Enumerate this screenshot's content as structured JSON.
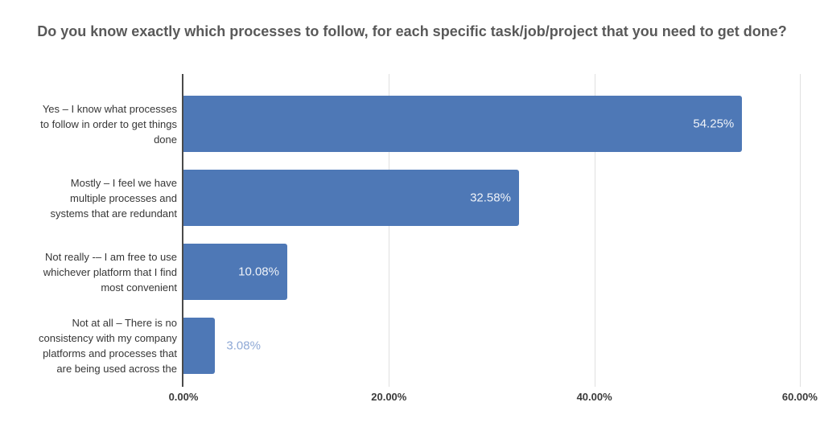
{
  "title": "Do you know exactly which processes to follow, for each specific task/job/project that you need to get done?",
  "chart_data": {
    "type": "bar",
    "orientation": "horizontal",
    "title": "Do you know exactly which processes to follow, for each specific task/job/project that you need to get done?",
    "categories": [
      "Yes – I know what processes\nto follow in order to get things\ndone",
      "Mostly – I feel we have\nmultiple processes and\nsystems that are redundant",
      "Not really -– I am free to use\nwhichever platform that I find\nmost convenient",
      "Not at all – There is no\nconsistency with my company\nplatforms and processes that\nare being used across the"
    ],
    "values": [
      54.25,
      32.58,
      10.08,
      3.08
    ],
    "value_labels": [
      "54.25%",
      "32.58%",
      "10.08%",
      "3.08%"
    ],
    "x_axis": {
      "tick_labels": [
        "0.00%",
        "20.00%",
        "40.00%",
        "60.00%"
      ],
      "tick_values": [
        0,
        20,
        40,
        60
      ],
      "max": 62.2
    },
    "legend": "none",
    "grid": "vertical-only",
    "colors": {
      "bar": "#4e78b6",
      "value_label_inside": "#eef2f8",
      "value_label_outside": "#8fa9d6",
      "axis_line": "#4a4a4a",
      "gridline": "#e0e0e0",
      "title_text": "#595959",
      "category_text": "#363636",
      "tick_text": "#3a3a3a",
      "background": "#ffffff"
    }
  }
}
